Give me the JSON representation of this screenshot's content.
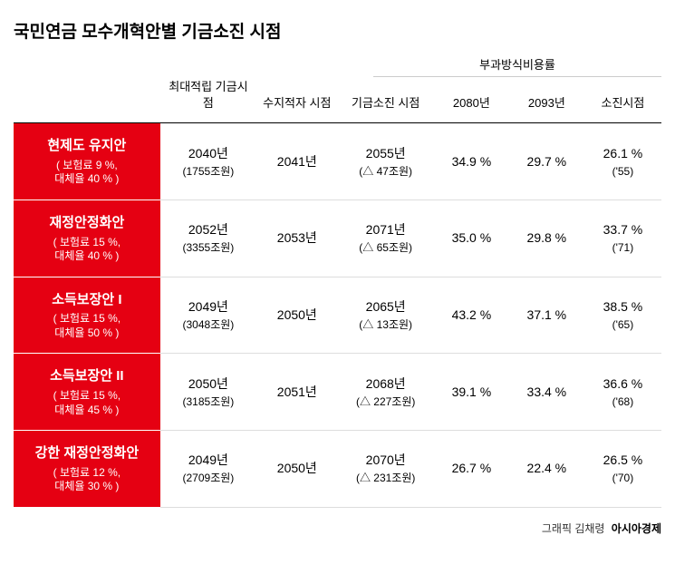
{
  "title": "국민연금 모수개혁안별 기금소진 시점",
  "spanning_header": "부과방식비용률",
  "headers": {
    "col1": "최대적립\n기금시점",
    "col2": "수지적자\n시점",
    "col3": "기금소진\n시점",
    "col4": "2080년",
    "col5": "2093년",
    "col6": "소진시점"
  },
  "rows": [
    {
      "plan_name": "현제도 유지안",
      "plan_sub1": "( 보험료 9 %,",
      "plan_sub2": "대체율 40 % )",
      "max_fund": "2040년",
      "max_fund_sub": "(1755조원)",
      "deficit": "2041년",
      "depletion": "2055년",
      "depletion_sub": "(△ 47조원)",
      "rate_2080": "34.9 %",
      "rate_2093": "29.7 %",
      "rate_depl": "26.1 %",
      "rate_depl_sub": "('55)"
    },
    {
      "plan_name": "재정안정화안",
      "plan_sub1": "( 보험료 15 %,",
      "plan_sub2": "대체율 40 % )",
      "max_fund": "2052년",
      "max_fund_sub": "(3355조원)",
      "deficit": "2053년",
      "depletion": "2071년",
      "depletion_sub": "(△ 65조원)",
      "rate_2080": "35.0 %",
      "rate_2093": "29.8 %",
      "rate_depl": "33.7 %",
      "rate_depl_sub": "('71)"
    },
    {
      "plan_name": "소득보장안 I",
      "plan_sub1": "( 보험료 15 %,",
      "plan_sub2": "대체율 50 % )",
      "max_fund": "2049년",
      "max_fund_sub": "(3048조원)",
      "deficit": "2050년",
      "depletion": "2065년",
      "depletion_sub": "(△ 13조원)",
      "rate_2080": "43.2 %",
      "rate_2093": "37.1 %",
      "rate_depl": "38.5 %",
      "rate_depl_sub": "('65)"
    },
    {
      "plan_name": "소득보장안 II",
      "plan_sub1": "( 보험료 15 %,",
      "plan_sub2": "대체율 45 % )",
      "max_fund": "2050년",
      "max_fund_sub": "(3185조원)",
      "deficit": "2051년",
      "depletion": "2068년",
      "depletion_sub": "(△ 227조원)",
      "rate_2080": "39.1 %",
      "rate_2093": "33.4 %",
      "rate_depl": "36.6 %",
      "rate_depl_sub": "('68)"
    },
    {
      "plan_name": "강한 재정안정화안",
      "plan_sub1": "( 보험료 12 %,",
      "plan_sub2": "대체율 30 % )",
      "max_fund": "2049년",
      "max_fund_sub": "(2709조원)",
      "deficit": "2050년",
      "depletion": "2070년",
      "depletion_sub": "(△ 231조원)",
      "rate_2080": "26.7 %",
      "rate_2093": "22.4 %",
      "rate_depl": "26.5 %",
      "rate_depl_sub": "('70)"
    }
  ],
  "footer_credit": "그래픽 김채령",
  "footer_brand": "아시아경제",
  "colors": {
    "plan_bg": "#e50012",
    "plan_text": "#ffffff",
    "header_border": "#000000",
    "row_border": "#dddddd",
    "text": "#000000"
  }
}
